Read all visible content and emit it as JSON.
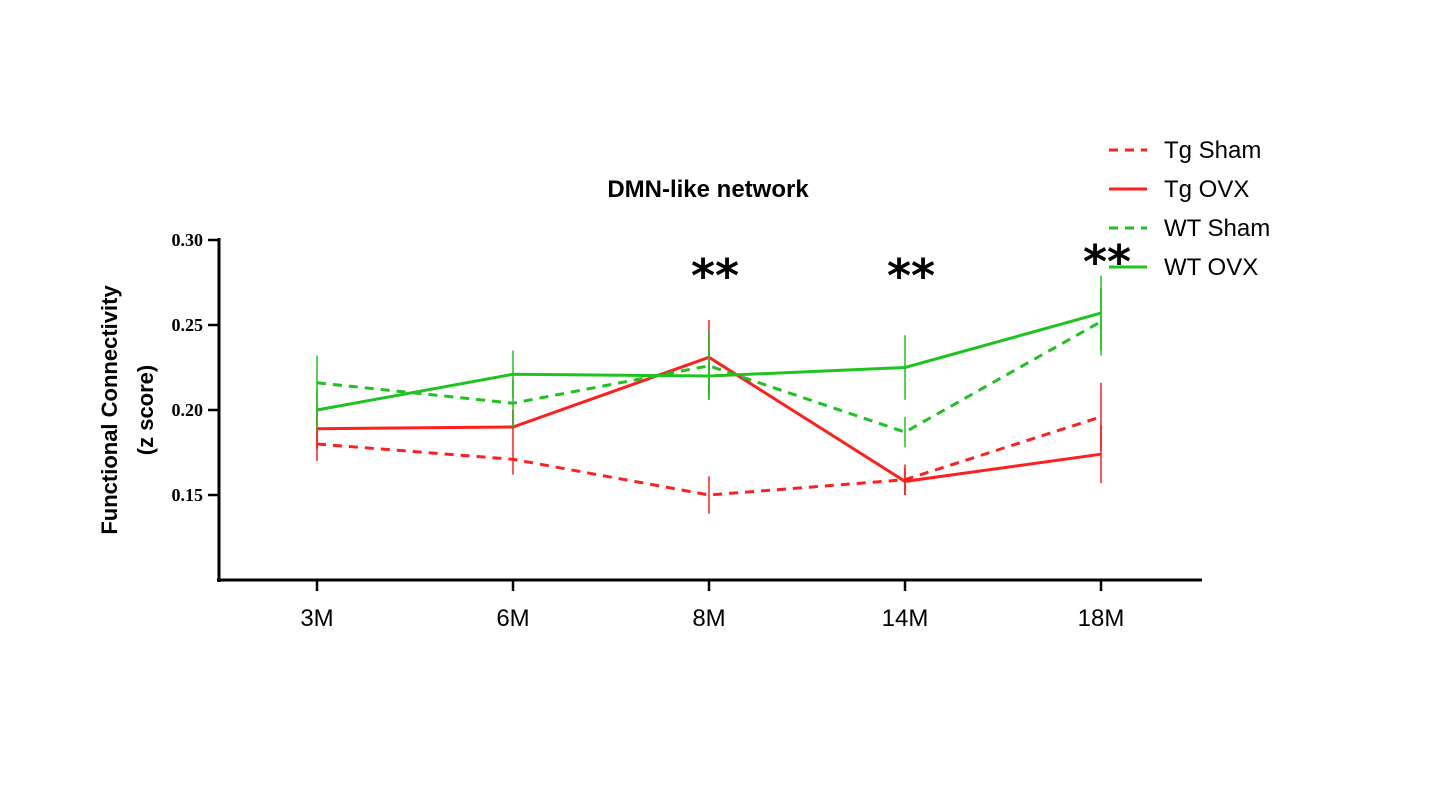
{
  "chart_data": {
    "type": "line",
    "title": "DMN-like network",
    "ylabel_line1": "Functional Connectivity",
    "ylabel_line2": "(z score)",
    "categories": [
      "3M",
      "6M",
      "8M",
      "14M",
      "18M"
    ],
    "ylim": [
      0.1,
      0.3
    ],
    "yticks": [
      0.15,
      0.2,
      0.25,
      0.3
    ],
    "ytick_labels": [
      "0.15",
      "0.20",
      "0.25",
      "0.30"
    ],
    "grid": false,
    "legend_position": "top-right",
    "series": [
      {
        "name": "Tg Sham",
        "color": "#ff1f1f",
        "dash": true,
        "values": [
          0.18,
          0.171,
          0.15,
          0.159,
          0.196
        ],
        "errors": [
          0.01,
          0.009,
          0.011,
          0.009,
          0.02
        ]
      },
      {
        "name": "Tg OVX",
        "color": "#ff1f1f",
        "dash": false,
        "values": [
          0.189,
          0.19,
          0.231,
          0.158,
          0.174
        ],
        "errors": [
          0.012,
          0.01,
          0.022,
          0.008,
          0.017
        ]
      },
      {
        "name": "WT Sham",
        "color": "#1fc21f",
        "dash": true,
        "values": [
          0.216,
          0.204,
          0.226,
          0.187,
          0.252
        ],
        "errors": [
          0.016,
          0.014,
          0.02,
          0.009,
          0.02
        ]
      },
      {
        "name": "WT OVX",
        "color": "#1fc21f",
        "dash": false,
        "values": [
          0.2,
          0.221,
          0.22,
          0.225,
          0.257
        ],
        "errors": [
          0.012,
          0.014,
          0.014,
          0.019,
          0.022
        ]
      }
    ],
    "annotations": [
      {
        "category": "8M",
        "text": "**"
      },
      {
        "category": "14M",
        "text": "**"
      },
      {
        "category": "18M",
        "text": "**"
      }
    ]
  }
}
